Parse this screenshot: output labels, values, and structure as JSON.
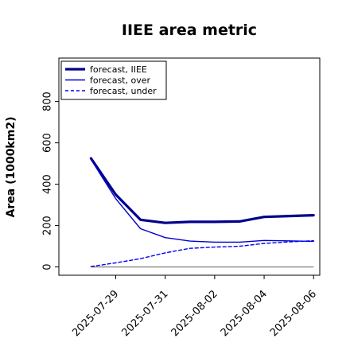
{
  "chart_data": {
    "type": "line",
    "title": "IIEE area metric",
    "xlabel": "",
    "ylabel": "Area (1000km2)",
    "x": [
      "2025-07-28",
      "2025-07-29",
      "2025-07-30",
      "2025-07-31",
      "2025-08-01",
      "2025-08-02",
      "2025-08-03",
      "2025-08-04",
      "2025-08-05",
      "2025-08-06"
    ],
    "x_ticks": [
      "2025-07-29",
      "2025-07-31",
      "2025-08-02",
      "2025-08-04",
      "2025-08-06"
    ],
    "x_tick_colors": [
      "#228b22",
      "#000000",
      "#000000",
      "#000000",
      "#000000"
    ],
    "ylim": [
      -40,
      1010
    ],
    "yticks": [
      0,
      200,
      400,
      600,
      800
    ],
    "grid": false,
    "legend_position": "top-left",
    "series": [
      {
        "name": "forecast, IIEE",
        "color": "#00008b",
        "style": "solid-thick",
        "values": [
          525,
          350,
          228,
          213,
          218,
          218,
          220,
          242,
          246,
          250
        ]
      },
      {
        "name": "forecast, over",
        "color": "#0000cd",
        "style": "solid",
        "values": [
          520,
          330,
          185,
          142,
          125,
          120,
          120,
          128,
          126,
          124
        ]
      },
      {
        "name": "forecast, under",
        "color": "#0000ff",
        "style": "dashed",
        "values": [
          2,
          20,
          40,
          68,
          90,
          96,
          100,
          114,
          121,
          127
        ]
      }
    ],
    "reference_line": {
      "value": 0,
      "color": "#808080"
    }
  }
}
